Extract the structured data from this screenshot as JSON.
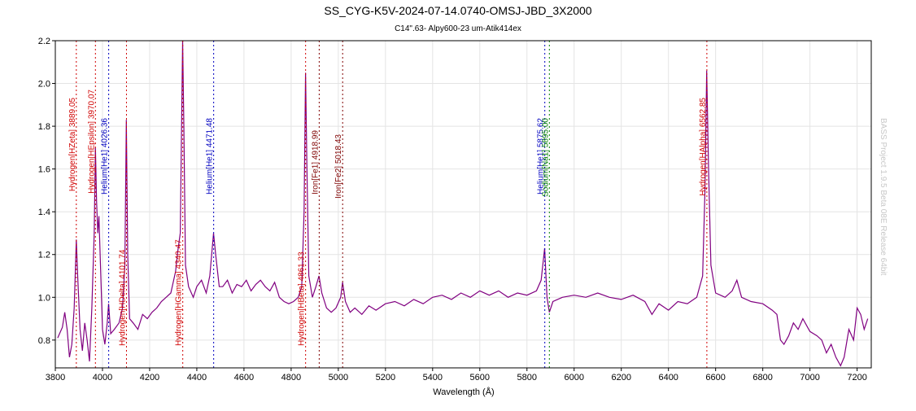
{
  "chart_data": {
    "type": "line",
    "title": "SS_CYG-K5V-2024-07-14.0740-OMSJ-JBD_3X2000",
    "subtitle": "C14\".63- Alpy600-23 um-Atik414ex",
    "x_label": "Wavelength (Å)",
    "watermark": "BASS Project 1.9.5 Beta 08E Release 64bit",
    "xlim": [
      3800,
      7260
    ],
    "ylim": [
      0.67,
      2.2
    ],
    "xticks": [
      3800,
      4000,
      4200,
      4400,
      4600,
      4800,
      5000,
      5200,
      5400,
      5600,
      5800,
      6000,
      6200,
      6400,
      6600,
      6800,
      7000,
      7200
    ],
    "yticks": [
      0.8,
      {
        "value": 1,
        "label": "1.0"
      },
      1.2,
      1.4,
      1.6,
      1.8,
      {
        "value": 2,
        "label": "2.0"
      },
      2.2
    ],
    "grid": true,
    "series": [
      {
        "color": "#800080",
        "x": [
          3810,
          3830,
          3840,
          3850,
          3860,
          3870,
          3880,
          3889,
          3895,
          3905,
          3915,
          3925,
          3935,
          3945,
          3955,
          3965,
          3970,
          3975,
          3980,
          3985,
          3990,
          4000,
          4010,
          4020,
          4026,
          4035,
          4050,
          4070,
          4085,
          4095,
          4101,
          4107,
          4115,
          4130,
          4150,
          4170,
          4190,
          4210,
          4230,
          4250,
          4270,
          4290,
          4310,
          4320,
          4330,
          4340,
          4345,
          4352,
          4365,
          4385,
          4400,
          4420,
          4440,
          4455,
          4471,
          4480,
          4495,
          4510,
          4530,
          4550,
          4570,
          4590,
          4610,
          4630,
          4650,
          4670,
          4690,
          4710,
          4730,
          4750,
          4770,
          4790,
          4810,
          4830,
          4845,
          4855,
          4861,
          4867,
          4875,
          4890,
          4905,
          4918,
          4930,
          4950,
          4970,
          4990,
          5010,
          5018,
          5030,
          5050,
          5070,
          5100,
          5130,
          5160,
          5200,
          5240,
          5280,
          5320,
          5360,
          5400,
          5440,
          5480,
          5520,
          5560,
          5600,
          5640,
          5680,
          5720,
          5760,
          5800,
          5840,
          5860,
          5875,
          5885,
          5895,
          5910,
          5950,
          6000,
          6050,
          6100,
          6150,
          6200,
          6250,
          6300,
          6330,
          6360,
          6400,
          6440,
          6480,
          6520,
          6545,
          6555,
          6562,
          6570,
          6580,
          6600,
          6640,
          6670,
          6690,
          6710,
          6750,
          6800,
          6840,
          6860,
          6875,
          6890,
          6910,
          6930,
          6950,
          6970,
          7000,
          7030,
          7050,
          7070,
          7090,
          7110,
          7130,
          7145,
          7165,
          7185,
          7200,
          7215,
          7230,
          7245
        ],
        "values": [
          0.81,
          0.86,
          0.93,
          0.85,
          0.72,
          0.78,
          0.95,
          1.27,
          1.1,
          0.85,
          0.75,
          0.88,
          0.8,
          0.7,
          0.95,
          1.3,
          1.7,
          1.45,
          1.3,
          1.38,
          1.2,
          0.85,
          0.78,
          0.88,
          0.97,
          0.83,
          0.85,
          0.88,
          0.95,
          1.15,
          1.83,
          1.2,
          0.9,
          0.88,
          0.85,
          0.92,
          0.9,
          0.93,
          0.95,
          0.98,
          1.0,
          1.02,
          1.12,
          1.22,
          1.3,
          2.2,
          1.8,
          1.15,
          1.05,
          1.0,
          1.05,
          1.08,
          1.02,
          1.1,
          1.3,
          1.2,
          1.05,
          1.05,
          1.08,
          1.02,
          1.06,
          1.05,
          1.08,
          1.03,
          1.06,
          1.08,
          1.05,
          1.03,
          1.07,
          1.0,
          0.98,
          0.97,
          0.98,
          1.0,
          1.05,
          1.4,
          2.05,
          1.6,
          1.1,
          1.0,
          1.05,
          1.1,
          1.02,
          0.95,
          0.93,
          0.95,
          1.0,
          1.07,
          0.98,
          0.93,
          0.95,
          0.92,
          0.96,
          0.94,
          0.97,
          0.98,
          0.96,
          0.99,
          0.97,
          1.0,
          1.01,
          0.99,
          1.02,
          1.0,
          1.03,
          1.01,
          1.03,
          1.0,
          1.02,
          1.01,
          1.03,
          1.08,
          1.23,
          1.0,
          0.93,
          0.98,
          1.0,
          1.01,
          1.0,
          1.02,
          1.0,
          0.99,
          1.01,
          0.98,
          0.92,
          0.97,
          0.94,
          0.98,
          0.97,
          1.0,
          1.1,
          1.5,
          2.06,
          1.6,
          1.15,
          1.02,
          1.0,
          1.03,
          1.08,
          1.0,
          0.98,
          0.97,
          0.94,
          0.92,
          0.8,
          0.78,
          0.82,
          0.88,
          0.85,
          0.9,
          0.84,
          0.82,
          0.8,
          0.74,
          0.78,
          0.72,
          0.68,
          0.72,
          0.85,
          0.8,
          0.95,
          0.92,
          0.85,
          0.9
        ]
      }
    ],
    "markers": [
      {
        "value": 3889.05,
        "label": "Hydrogen[HZeta] 3889.05",
        "color": "#d00000"
      },
      {
        "value": 3970.07,
        "label": "Hydrogen[HEpsilon] 3970.07",
        "color": "#d00000"
      },
      {
        "value": 4026.36,
        "label": "Helium[He1] 4026.36",
        "color": "#0000c0"
      },
      {
        "value": 4101.74,
        "label": "Hydrogen[HDelta] 4101.74",
        "color": "#d00000"
      },
      {
        "value": 4340.47,
        "label": "Hydrogen[HGamma] 4340.47",
        "color": "#d00000"
      },
      {
        "value": 4471.48,
        "label": "Helium[He1] 4471.48",
        "color": "#0000c0"
      },
      {
        "value": 4861.33,
        "label": "Hydrogen[HBeta] 4861.33",
        "color": "#d00000"
      },
      {
        "value": 4918.99,
        "label": "Iron[Fe1] 4918.99",
        "color": "#800000"
      },
      {
        "value": 5018.43,
        "label": "Iron[Fe2] 5018.43",
        "color": "#800000"
      },
      {
        "value": 5875.62,
        "label": "Helium[He1] 5875.62",
        "color": "#0000c0"
      },
      {
        "value": 5895.0,
        "label": "Sodium[Na1] 5895.00",
        "color": "#008000"
      },
      {
        "value": 6562.85,
        "label": "Hydrogen[HAlpha] 6562.85",
        "color": "#d00000"
      }
    ]
  }
}
